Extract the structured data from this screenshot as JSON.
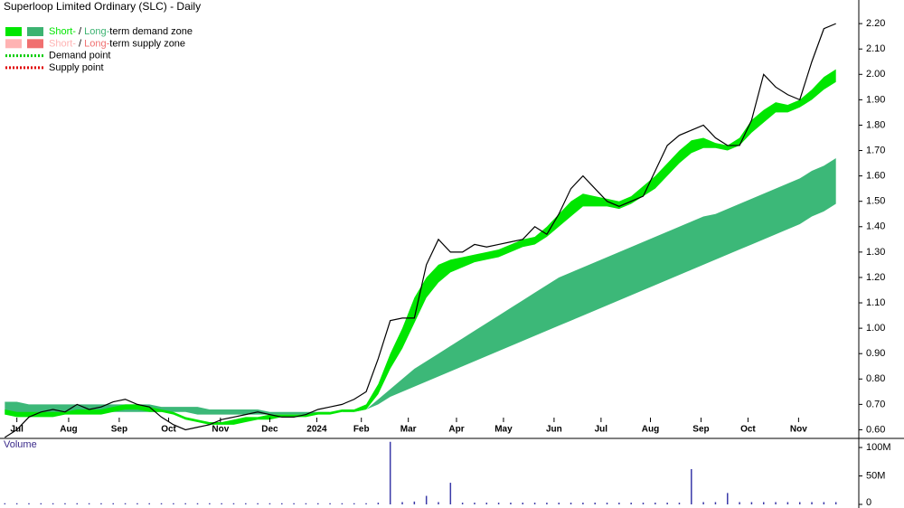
{
  "title": "Superloop Limited Ordinary (SLC) - Daily",
  "legend": [
    {
      "short": "Short-",
      "sep": " / ",
      "long": "Long-",
      "rest": "term demand zone",
      "short_color": "#00e600",
      "long_color": "#3cb371"
    },
    {
      "short": "Short-",
      "sep": " / ",
      "long": "Long-",
      "rest": "term supply zone",
      "short_color": "#ffb3b3",
      "long_color": "#f07070"
    },
    {
      "text": "Demand point",
      "color": "#00cc00"
    },
    {
      "text": "Supply point",
      "color": "#e00000"
    }
  ],
  "chart_data": [
    {
      "type": "line",
      "x": [
        0,
        1,
        2,
        3,
        4,
        5,
        6,
        7,
        8,
        9,
        10,
        11,
        12,
        13,
        14,
        15,
        16,
        17,
        18,
        19,
        20,
        21,
        22,
        23,
        24,
        25,
        26,
        27,
        28,
        29,
        30,
        31,
        32,
        33,
        34,
        35,
        36,
        37,
        38,
        39,
        40,
        41,
        42,
        43,
        44,
        45,
        46,
        47,
        48,
        49,
        50,
        51,
        52,
        53,
        54,
        55,
        56,
        57,
        58,
        59,
        60,
        61,
        62,
        63,
        64,
        65,
        66,
        67,
        68,
        69
      ],
      "xlim": [
        -0.4,
        70.9
      ],
      "xticks": [
        {
          "value": 1.0,
          "label": "Jul"
        },
        {
          "value": 5.3,
          "label": "Aug"
        },
        {
          "value": 9.5,
          "label": "Sep"
        },
        {
          "value": 13.6,
          "label": "Oct"
        },
        {
          "value": 17.9,
          "label": "Nov"
        },
        {
          "value": 22.0,
          "label": "Dec"
        },
        {
          "value": 25.9,
          "label": "2024"
        },
        {
          "value": 29.6,
          "label": "Feb"
        },
        {
          "value": 33.5,
          "label": "Mar"
        },
        {
          "value": 37.5,
          "label": "Apr"
        },
        {
          "value": 41.4,
          "label": "May"
        },
        {
          "value": 45.6,
          "label": "Jun"
        },
        {
          "value": 49.5,
          "label": "Jul"
        },
        {
          "value": 53.6,
          "label": "Aug"
        },
        {
          "value": 57.8,
          "label": "Sep"
        },
        {
          "value": 61.7,
          "label": "Oct"
        },
        {
          "value": 65.9,
          "label": "Nov"
        }
      ],
      "ylim": [
        0.566,
        2.293
      ],
      "yticks": [
        {
          "value": 0.6,
          "label": "0.60"
        },
        {
          "value": 0.7,
          "label": "0.70"
        },
        {
          "value": 0.8,
          "label": "0.80"
        },
        {
          "value": 0.9,
          "label": "0.90"
        },
        {
          "value": 1.0,
          "label": "1.00"
        },
        {
          "value": 1.1,
          "label": "1.10"
        },
        {
          "value": 1.2,
          "label": "1.20"
        },
        {
          "value": 1.3,
          "label": "1.30"
        },
        {
          "value": 1.4,
          "label": "1.40"
        },
        {
          "value": 1.5,
          "label": "1.50"
        },
        {
          "value": 1.6,
          "label": "1.60"
        },
        {
          "value": 1.7,
          "label": "1.70"
        },
        {
          "value": 1.8,
          "label": "1.80"
        },
        {
          "value": 1.9,
          "label": "1.90"
        },
        {
          "value": 2.0,
          "label": "2.00"
        },
        {
          "value": 2.1,
          "label": "2.10"
        },
        {
          "value": 2.2,
          "label": "2.20"
        }
      ],
      "bands": [
        {
          "color": "#3cb878",
          "upper": [
            0.71,
            0.71,
            0.7,
            0.7,
            0.7,
            0.7,
            0.7,
            0.7,
            0.7,
            0.7,
            0.7,
            0.7,
            0.7,
            0.69,
            0.69,
            0.69,
            0.69,
            0.68,
            0.68,
            0.68,
            0.68,
            0.68,
            0.67,
            0.67,
            0.67,
            0.67,
            0.67,
            0.67,
            0.67,
            0.68,
            0.68,
            0.72,
            0.76,
            0.8,
            0.84,
            0.87,
            0.9,
            0.93,
            0.96,
            0.99,
            1.02,
            1.05,
            1.08,
            1.11,
            1.14,
            1.17,
            1.2,
            1.22,
            1.24,
            1.26,
            1.28,
            1.3,
            1.32,
            1.34,
            1.36,
            1.38,
            1.4,
            1.42,
            1.44,
            1.45,
            1.47,
            1.49,
            1.51,
            1.53,
            1.55,
            1.57,
            1.59,
            1.62,
            1.64,
            1.67
          ],
          "lower": [
            0.66,
            0.66,
            0.66,
            0.66,
            0.66,
            0.67,
            0.67,
            0.67,
            0.67,
            0.67,
            0.67,
            0.67,
            0.67,
            0.67,
            0.67,
            0.67,
            0.66,
            0.66,
            0.66,
            0.66,
            0.66,
            0.66,
            0.66,
            0.66,
            0.66,
            0.66,
            0.66,
            0.67,
            0.67,
            0.67,
            0.68,
            0.7,
            0.73,
            0.75,
            0.77,
            0.79,
            0.81,
            0.83,
            0.85,
            0.87,
            0.89,
            0.91,
            0.93,
            0.95,
            0.97,
            0.99,
            1.01,
            1.03,
            1.05,
            1.07,
            1.09,
            1.11,
            1.13,
            1.15,
            1.17,
            1.19,
            1.21,
            1.23,
            1.25,
            1.27,
            1.29,
            1.31,
            1.33,
            1.35,
            1.37,
            1.39,
            1.41,
            1.44,
            1.46,
            1.49
          ]
        },
        {
          "color": "#00e600",
          "upper": [
            0.68,
            0.67,
            0.67,
            0.67,
            0.67,
            0.67,
            0.68,
            0.68,
            0.68,
            0.69,
            0.7,
            0.7,
            0.69,
            0.68,
            0.67,
            0.65,
            0.64,
            0.63,
            0.63,
            0.64,
            0.65,
            0.65,
            0.66,
            0.66,
            0.66,
            0.66,
            0.67,
            0.67,
            0.68,
            0.68,
            0.7,
            0.78,
            0.9,
            1.0,
            1.12,
            1.2,
            1.25,
            1.27,
            1.28,
            1.29,
            1.3,
            1.31,
            1.33,
            1.35,
            1.36,
            1.4,
            1.45,
            1.5,
            1.53,
            1.52,
            1.51,
            1.5,
            1.52,
            1.56,
            1.6,
            1.65,
            1.7,
            1.74,
            1.75,
            1.73,
            1.72,
            1.75,
            1.82,
            1.86,
            1.89,
            1.88,
            1.9,
            1.94,
            1.99,
            2.02
          ],
          "lower": [
            0.66,
            0.65,
            0.65,
            0.65,
            0.65,
            0.66,
            0.66,
            0.66,
            0.66,
            0.67,
            0.68,
            0.68,
            0.67,
            0.67,
            0.66,
            0.64,
            0.63,
            0.62,
            0.62,
            0.62,
            0.63,
            0.64,
            0.64,
            0.65,
            0.65,
            0.65,
            0.66,
            0.66,
            0.67,
            0.67,
            0.68,
            0.74,
            0.84,
            0.92,
            1.02,
            1.12,
            1.18,
            1.22,
            1.24,
            1.26,
            1.27,
            1.28,
            1.3,
            1.32,
            1.33,
            1.36,
            1.4,
            1.44,
            1.48,
            1.48,
            1.48,
            1.47,
            1.49,
            1.52,
            1.55,
            1.6,
            1.65,
            1.69,
            1.71,
            1.71,
            1.7,
            1.72,
            1.77,
            1.81,
            1.85,
            1.85,
            1.87,
            1.9,
            1.94,
            1.97
          ]
        }
      ],
      "series": [
        {
          "color": "#000000",
          "values": [
            0.57,
            0.6,
            0.65,
            0.67,
            0.68,
            0.67,
            0.7,
            0.68,
            0.69,
            0.71,
            0.72,
            0.7,
            0.69,
            0.65,
            0.62,
            0.6,
            0.61,
            0.62,
            0.64,
            0.65,
            0.66,
            0.67,
            0.66,
            0.65,
            0.65,
            0.66,
            0.68,
            0.69,
            0.7,
            0.72,
            0.75,
            0.88,
            1.03,
            1.04,
            1.04,
            1.25,
            1.35,
            1.3,
            1.3,
            1.33,
            1.32,
            1.33,
            1.34,
            1.35,
            1.4,
            1.37,
            1.45,
            1.55,
            1.6,
            1.55,
            1.5,
            1.48,
            1.5,
            1.52,
            1.62,
            1.72,
            1.76,
            1.78,
            1.8,
            1.75,
            1.72,
            1.72,
            1.82,
            2.0,
            1.95,
            1.92,
            1.9,
            2.05,
            2.18,
            2.2
          ]
        }
      ]
    },
    {
      "type": "bar",
      "title": "Volume",
      "color": "#3a3aa8",
      "ylim": [
        0,
        116000000
      ],
      "yticks": [
        {
          "value": 0,
          "label": "0"
        },
        {
          "value": 50000000,
          "label": "50M"
        },
        {
          "value": 100000000,
          "label": "100M"
        }
      ],
      "values": [
        2000000,
        2000000,
        2000000,
        2000000,
        2000000,
        2000000,
        2000000,
        2000000,
        2000000,
        2000000,
        2000000,
        2000000,
        2000000,
        2000000,
        2000000,
        2000000,
        2000000,
        2000000,
        2000000,
        2000000,
        2000000,
        2000000,
        2000000,
        2000000,
        2000000,
        2000000,
        2000000,
        2000000,
        2000000,
        2000000,
        2000000,
        3000000,
        110000000,
        4000000,
        5000000,
        15000000,
        4000000,
        38000000,
        3000000,
        3000000,
        3000000,
        3000000,
        3000000,
        3000000,
        3000000,
        3000000,
        3000000,
        3000000,
        3000000,
        3000000,
        3000000,
        3000000,
        3000000,
        3000000,
        3000000,
        3000000,
        3000000,
        62000000,
        4000000,
        4000000,
        20000000,
        4000000,
        4000000,
        4000000,
        4000000,
        4000000,
        4000000,
        4000000,
        4000000,
        4000000
      ]
    }
  ]
}
